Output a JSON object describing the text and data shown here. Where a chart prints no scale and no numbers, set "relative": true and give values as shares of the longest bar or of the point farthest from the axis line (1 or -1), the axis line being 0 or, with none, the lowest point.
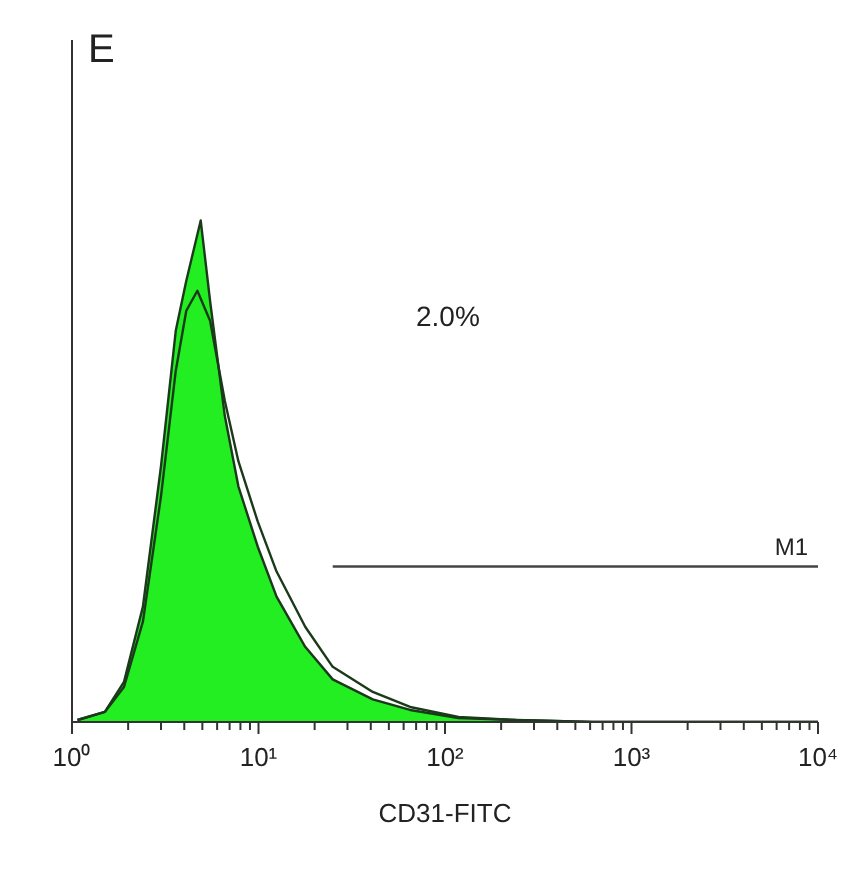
{
  "chart_data": {
    "type": "area",
    "title": "E",
    "xlabel": "CD31-FITC",
    "relative": true,
    "log": "x",
    "xlim": [
      1,
      10000
    ],
    "xticks": [
      {
        "value": 1,
        "label": "10⁰"
      },
      {
        "value": 2,
        "label": null
      },
      {
        "value": 3,
        "label": null
      },
      {
        "value": 4,
        "label": null
      },
      {
        "value": 5,
        "label": null
      },
      {
        "value": 6,
        "label": null
      },
      {
        "value": 7,
        "label": null
      },
      {
        "value": 8,
        "label": null
      },
      {
        "value": 9,
        "label": null
      },
      {
        "value": 10,
        "label": "10¹"
      },
      {
        "value": 20,
        "label": null
      },
      {
        "value": 30,
        "label": null
      },
      {
        "value": 40,
        "label": null
      },
      {
        "value": 50,
        "label": null
      },
      {
        "value": 60,
        "label": null
      },
      {
        "value": 70,
        "label": null
      },
      {
        "value": 80,
        "label": null
      },
      {
        "value": 90,
        "label": null
      },
      {
        "value": 100,
        "label": "10²"
      },
      {
        "value": 200,
        "label": null
      },
      {
        "value": 300,
        "label": null
      },
      {
        "value": 400,
        "label": null
      },
      {
        "value": 500,
        "label": null
      },
      {
        "value": 600,
        "label": null
      },
      {
        "value": 700,
        "label": null
      },
      {
        "value": 800,
        "label": null
      },
      {
        "value": 900,
        "label": null
      },
      {
        "value": 1000,
        "label": "10³"
      },
      {
        "value": 2000,
        "label": null
      },
      {
        "value": 3000,
        "label": null
      },
      {
        "value": 4000,
        "label": null
      },
      {
        "value": 5000,
        "label": null
      },
      {
        "value": 6000,
        "label": null
      },
      {
        "value": 7000,
        "label": null
      },
      {
        "value": 8000,
        "label": null
      },
      {
        "value": 9000,
        "label": null
      },
      {
        "value": 10000,
        "label": "10⁴"
      }
    ],
    "series": [
      {
        "color": "#22ee22",
        "x": [
          1.07,
          1.5,
          1.9,
          2.4,
          3.0,
          3.6,
          4.1,
          4.9,
          5.5,
          6.6,
          7.8,
          9.9,
          12.5,
          17.8,
          25,
          41,
          65,
          118,
          240,
          620,
          10000
        ],
        "values": [
          0.004,
          0.02,
          0.08,
          0.23,
          0.51,
          0.78,
          0.88,
          1.0,
          0.84,
          0.61,
          0.47,
          0.35,
          0.25,
          0.15,
          0.085,
          0.045,
          0.024,
          0.008,
          0.004,
          0,
          0
        ]
      },
      {
        "type": "line",
        "color": "#1a3a1a",
        "x": [
          1.07,
          1.5,
          1.9,
          2.4,
          3.0,
          3.6,
          4.1,
          4.7,
          5.5,
          6.6,
          7.8,
          9.9,
          12.5,
          17.8,
          25,
          41,
          65,
          118,
          240,
          620,
          10000
        ],
        "values": [
          0.004,
          0.02,
          0.07,
          0.2,
          0.45,
          0.7,
          0.82,
          0.86,
          0.8,
          0.64,
          0.52,
          0.4,
          0.3,
          0.19,
          0.11,
          0.06,
          0.03,
          0.01,
          0.004,
          0,
          0
        ]
      },
      {
        "type": "line",
        "color": "#444444",
        "x": [
          25,
          10000
        ],
        "values": [
          0.31,
          0.31
        ]
      }
    ],
    "annotations": [
      "2.0%",
      {
        "text": "M1",
        "x": 10000,
        "y": 0.31
      }
    ],
    "grid": false,
    "legend": false
  }
}
